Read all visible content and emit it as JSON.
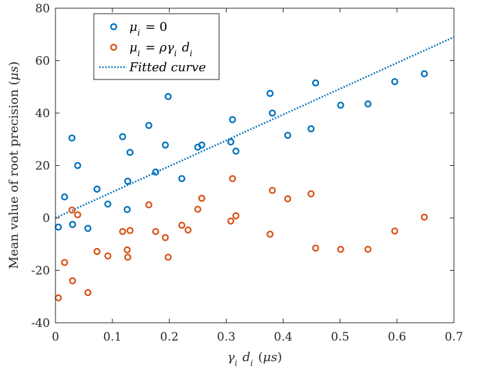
{
  "chart_data": {
    "type": "scatter",
    "xlabel": "γ_i d_i (μs)",
    "ylabel": "Mean value of root precision (μs)",
    "xlim": [
      0,
      0.7
    ],
    "ylim": [
      -40,
      80
    ],
    "xticks": [
      "0",
      "0.1",
      "0.2",
      "0.3",
      "0.4",
      "0.5",
      "0.6",
      "0.7"
    ],
    "yticks": [
      "-40",
      "-20",
      "0",
      "20",
      "40",
      "60",
      "80"
    ],
    "grid": false,
    "legend_position": "top-left",
    "series": [
      {
        "name": "μ_i = 0",
        "color": "#0072BD",
        "marker": "circle",
        "points": [
          [
            0.005,
            -3.5
          ],
          [
            0.016,
            8
          ],
          [
            0.029,
            30.5
          ],
          [
            0.03,
            -2.5
          ],
          [
            0.039,
            20
          ],
          [
            0.057,
            -4
          ],
          [
            0.073,
            11
          ],
          [
            0.092,
            5.3
          ],
          [
            0.118,
            31
          ],
          [
            0.126,
            3.2
          ],
          [
            0.127,
            14
          ],
          [
            0.131,
            25
          ],
          [
            0.164,
            35.3
          ],
          [
            0.176,
            17.5
          ],
          [
            0.193,
            27.8
          ],
          [
            0.198,
            46.3
          ],
          [
            0.222,
            15
          ],
          [
            0.25,
            27
          ],
          [
            0.257,
            27.8
          ],
          [
            0.308,
            29
          ],
          [
            0.311,
            37.5
          ],
          [
            0.317,
            25.5
          ],
          [
            0.377,
            47.5
          ],
          [
            0.381,
            40
          ],
          [
            0.408,
            31.5
          ],
          [
            0.449,
            34
          ],
          [
            0.457,
            51.5
          ],
          [
            0.501,
            43
          ],
          [
            0.549,
            43.5
          ],
          [
            0.596,
            52
          ],
          [
            0.648,
            55
          ]
        ]
      },
      {
        "name": "μ_i = ργ_i d_i",
        "color": "#D95319",
        "marker": "circle",
        "points": [
          [
            0.005,
            -30.5
          ],
          [
            0.016,
            -17
          ],
          [
            0.029,
            3
          ],
          [
            0.03,
            -24
          ],
          [
            0.039,
            1.2
          ],
          [
            0.057,
            -28.5
          ],
          [
            0.073,
            -12.8
          ],
          [
            0.092,
            -14.5
          ],
          [
            0.118,
            -5.2
          ],
          [
            0.126,
            -12.2
          ],
          [
            0.127,
            -15
          ],
          [
            0.131,
            -4.8
          ],
          [
            0.164,
            5
          ],
          [
            0.176,
            -5.2
          ],
          [
            0.193,
            -7.5
          ],
          [
            0.198,
            -15
          ],
          [
            0.222,
            -2.8
          ],
          [
            0.233,
            -4.6
          ],
          [
            0.25,
            3.3
          ],
          [
            0.257,
            7.5
          ],
          [
            0.308,
            -1.2
          ],
          [
            0.311,
            15
          ],
          [
            0.317,
            0.8
          ],
          [
            0.377,
            -6.2
          ],
          [
            0.381,
            10.5
          ],
          [
            0.408,
            7.3
          ],
          [
            0.449,
            9.2
          ],
          [
            0.457,
            -11.5
          ],
          [
            0.501,
            -12
          ],
          [
            0.549,
            -12
          ],
          [
            0.596,
            -5
          ],
          [
            0.648,
            0.3
          ]
        ]
      },
      {
        "name": "Fitted curve",
        "color": "#0072BD",
        "type": "line",
        "line_style": "dotted",
        "x": [
          0,
          0.7
        ],
        "y": [
          0,
          69
        ]
      }
    ]
  }
}
